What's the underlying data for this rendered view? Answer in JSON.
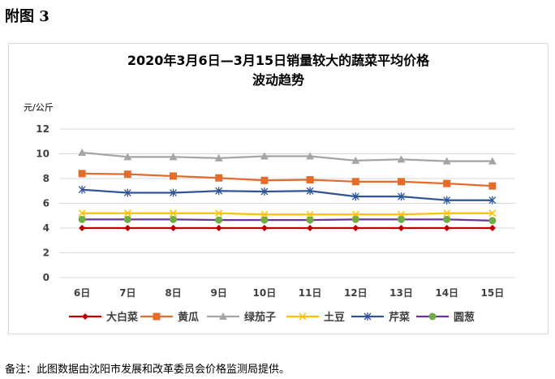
{
  "figure_label": "附图 3",
  "note": "备注：此图数据由沈阳市发展和改革委员会价格监测局提供。",
  "colors": {
    "grid": "#d9d9d9",
    "axis_text": "#404040"
  },
  "chart_data": {
    "type": "line",
    "title_line1": "2020年3月6日—3月15日销量较大的蔬菜平均价格",
    "title_line2": "波动趋势",
    "ylabel": "元/公斤",
    "xlabel": "",
    "categories": [
      "6日",
      "7日",
      "8日",
      "9日",
      "10日",
      "11日",
      "12日",
      "13日",
      "14日",
      "15日"
    ],
    "ylim": [
      0,
      12
    ],
    "yticks": [
      "0",
      "2",
      "4",
      "6",
      "8",
      "10",
      "12"
    ],
    "grid": true,
    "legend_position": "bottom",
    "series": [
      {
        "name": "大白菜",
        "color": "#c00000",
        "marker": "diamond",
        "values": [
          4.0,
          4.0,
          4.0,
          4.0,
          4.0,
          4.0,
          4.0,
          4.0,
          4.0,
          4.0
        ]
      },
      {
        "name": "黄瓜",
        "color": "#e36c2a",
        "marker": "square",
        "values": [
          8.4,
          8.35,
          8.2,
          8.05,
          7.85,
          7.9,
          7.75,
          7.75,
          7.6,
          7.4
        ]
      },
      {
        "name": "绿茄子",
        "color": "#a5a5a5",
        "marker": "triangle",
        "values": [
          10.1,
          9.75,
          9.75,
          9.65,
          9.8,
          9.8,
          9.45,
          9.55,
          9.4,
          9.4
        ]
      },
      {
        "name": "土豆",
        "color": "#ffc000",
        "marker": "x",
        "values": [
          5.2,
          5.2,
          5.2,
          5.2,
          5.1,
          5.1,
          5.1,
          5.1,
          5.2,
          5.2
        ]
      },
      {
        "name": "芹菜",
        "color": "#2f5597",
        "marker": "asterisk",
        "values": [
          7.1,
          6.85,
          6.85,
          7.0,
          6.95,
          7.0,
          6.55,
          6.55,
          6.25,
          6.25
        ]
      },
      {
        "name": "圆葱",
        "color": "#7030a0",
        "marker": "circle",
        "marker_color": "#70ad47",
        "values": [
          4.7,
          4.7,
          4.7,
          4.65,
          4.65,
          4.65,
          4.7,
          4.7,
          4.7,
          4.6
        ]
      }
    ]
  }
}
